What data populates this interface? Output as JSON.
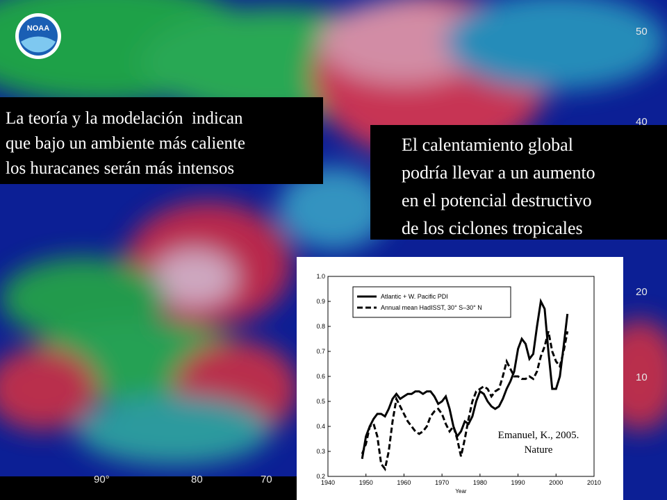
{
  "slide": {
    "logo": "NOAA",
    "map_labels": [
      "50",
      "40",
      "20",
      "10",
      "90°",
      "80",
      "70"
    ],
    "text_left": [
      "La teoría y la modelación  indican",
      "que bajo un ambiente más caliente",
      "los huracanes serán más intensos"
    ],
    "text_right": [
      "El calentamiento global",
      "podría llevar a un aumento",
      "en el potencial destructivo",
      "de los ciclones tropicales"
    ]
  },
  "chart_data": {
    "type": "line",
    "xlabel": "Year",
    "annotation": [
      "Emanuel, K., 2005.",
      "Nature"
    ],
    "xlim": [
      1940,
      2010
    ],
    "xticks": [
      1940,
      1950,
      1960,
      1970,
      1980,
      1990,
      2000,
      2010
    ],
    "ylim": [
      0.2,
      1
    ],
    "yticks": [
      0.2,
      0.3,
      0.4,
      0.5,
      0.6,
      0.7,
      0.8,
      0.9,
      {
        "value": 1,
        "label": "1.0"
      }
    ],
    "legend": "upper left",
    "x": [
      1949,
      1950,
      1951,
      1952,
      1953,
      1954,
      1955,
      1956,
      1957,
      1958,
      1959,
      1960,
      1961,
      1962,
      1963,
      1964,
      1965,
      1966,
      1967,
      1968,
      1969,
      1970,
      1971,
      1972,
      1973,
      1974,
      1975,
      1976,
      1977,
      1978,
      1979,
      1980,
      1981,
      1982,
      1983,
      1984,
      1985,
      1986,
      1987,
      1988,
      1989,
      1990,
      1991,
      1992,
      1993,
      1994,
      1995,
      1996,
      1997,
      1998,
      1999,
      2000,
      2001,
      2002,
      2003
    ],
    "series": [
      {
        "name": "Atlantic + W. Pacific PDI",
        "color": "#000000",
        "dash": "solid",
        "values": [
          0.27,
          0.36,
          0.4,
          0.43,
          0.45,
          0.45,
          0.44,
          0.47,
          0.51,
          0.53,
          0.51,
          0.52,
          0.53,
          0.53,
          0.54,
          0.54,
          0.53,
          0.54,
          0.54,
          0.52,
          0.49,
          0.5,
          0.52,
          0.47,
          0.4,
          0.36,
          0.38,
          0.42,
          0.41,
          0.44,
          0.5,
          0.54,
          0.53,
          0.5,
          0.48,
          0.47,
          0.48,
          0.51,
          0.55,
          0.58,
          0.62,
          0.71,
          0.75,
          0.73,
          0.67,
          0.69,
          0.8,
          0.9,
          0.87,
          0.7,
          0.55,
          0.55,
          0.6,
          0.72,
          0.85
        ]
      },
      {
        "name": "Annual mean HadISST, 30° S–30° N",
        "color": "#000000",
        "dash": "dashed",
        "values": [
          0.29,
          0.33,
          0.4,
          0.41,
          0.36,
          0.25,
          0.23,
          0.3,
          0.42,
          0.51,
          0.48,
          0.45,
          0.42,
          0.4,
          0.38,
          0.37,
          0.38,
          0.4,
          0.44,
          0.46,
          0.47,
          0.45,
          0.41,
          0.38,
          0.4,
          0.35,
          0.28,
          0.35,
          0.43,
          0.5,
          0.54,
          0.55,
          0.56,
          0.55,
          0.52,
          0.54,
          0.55,
          0.6,
          0.66,
          0.63,
          0.6,
          0.6,
          0.59,
          0.59,
          0.6,
          0.59,
          0.62,
          0.68,
          0.72,
          0.78,
          0.7,
          0.66,
          0.64,
          0.7,
          0.78
        ]
      }
    ]
  }
}
